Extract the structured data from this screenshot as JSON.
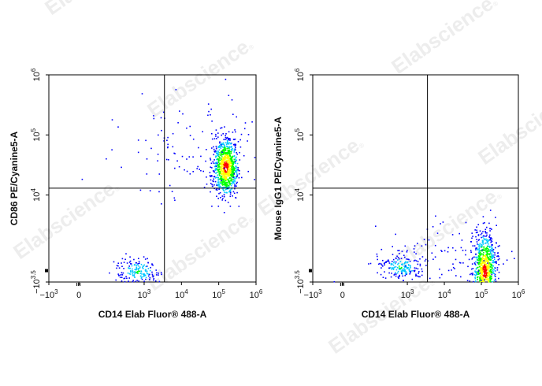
{
  "watermark": {
    "text": "Elabscience",
    "mark": "®"
  },
  "chart_data": [
    {
      "type": "scatter",
      "subtype": "flow-cytometry-density-dot-plot",
      "xlabel": "CD14 Elab Fluor® 488-A",
      "ylabel": "CD86 PE/Cyanine5-A",
      "x_scale": "biexponential",
      "y_scale": "biexponential",
      "x_ticks": [
        {
          "value": -1000,
          "base": "−10",
          "exp": "3"
        },
        {
          "value": 0,
          "base": "0",
          "exp": ""
        },
        {
          "value": 1000,
          "base": "10",
          "exp": "3"
        },
        {
          "value": 10000,
          "base": "10",
          "exp": "4"
        },
        {
          "value": 100000,
          "base": "10",
          "exp": "5"
        },
        {
          "value": 1000000,
          "base": "10",
          "exp": "6"
        }
      ],
      "y_ticks": [
        {
          "value": -3162,
          "base": "−10",
          "exp": "3.5"
        },
        {
          "value": 10000,
          "base": "10",
          "exp": "4"
        },
        {
          "value": 100000,
          "base": "10",
          "exp": "5"
        },
        {
          "value": 1000000,
          "base": "10",
          "exp": "6"
        }
      ],
      "quadrant_gate": {
        "x": 3500,
        "y": 13000
      },
      "populations": [
        {
          "x": 150000,
          "y": 30000,
          "spread": "dense"
        },
        {
          "x": 900,
          "y": -1500,
          "spread": "moderate"
        },
        {
          "x": 20000,
          "y": 60000,
          "spread": "sparse"
        }
      ]
    },
    {
      "type": "scatter",
      "subtype": "flow-cytometry-density-dot-plot",
      "xlabel": "CD14 Elab Fluor® 488-A",
      "ylabel": "Mouse IgG1 PE/Cyanine5-A",
      "x_scale": "biexponential",
      "y_scale": "biexponential",
      "x_ticks": [
        {
          "value": -1000,
          "base": "−10",
          "exp": "3"
        },
        {
          "value": 0,
          "base": "0",
          "exp": ""
        },
        {
          "value": 1000,
          "base": "10",
          "exp": "3"
        },
        {
          "value": 10000,
          "base": "10",
          "exp": "4"
        },
        {
          "value": 100000,
          "base": "10",
          "exp": "5"
        },
        {
          "value": 1000000,
          "base": "10",
          "exp": "6"
        }
      ],
      "y_ticks": [
        {
          "value": -3162,
          "base": "−10",
          "exp": "3.5"
        },
        {
          "value": 10000,
          "base": "10",
          "exp": "4"
        },
        {
          "value": 100000,
          "base": "10",
          "exp": "5"
        },
        {
          "value": 1000000,
          "base": "10",
          "exp": "6"
        }
      ],
      "quadrant_gate": {
        "x": 3500,
        "y": 13000
      },
      "populations": [
        {
          "x": 120000,
          "y": -1500,
          "spread": "dense"
        },
        {
          "x": 900,
          "y": -800,
          "spread": "moderate"
        },
        {
          "x": 10000,
          "y": -500,
          "spread": "sparse"
        }
      ]
    }
  ],
  "colors": {
    "low": "#0000ff",
    "mid1": "#00c8ff",
    "mid2": "#00ff00",
    "mid3": "#ffff00",
    "high": "#ff0000"
  }
}
